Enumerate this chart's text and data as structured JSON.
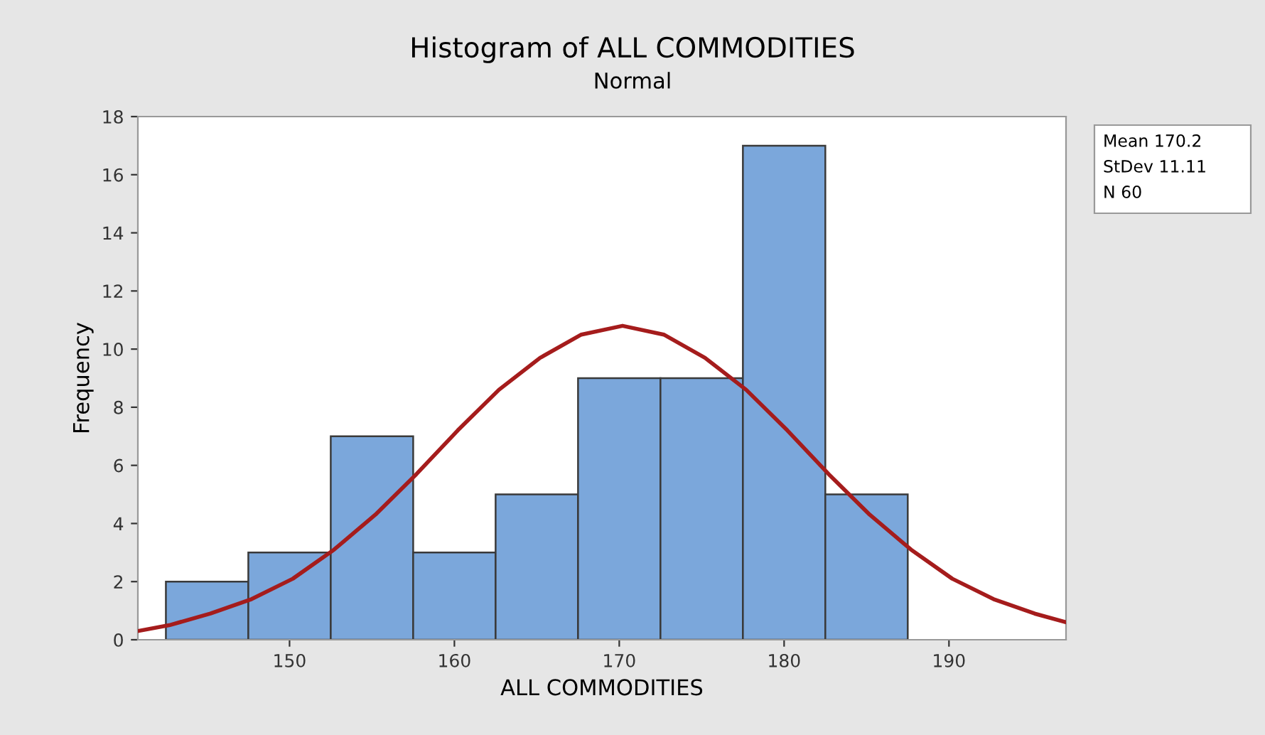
{
  "chart_data": {
    "type": "histogram",
    "title": "Histogram of ALL COMMODITIES",
    "subtitle": "Normal",
    "xlabel": "ALL COMMODITIES",
    "ylabel": "Frequency",
    "bins": [
      142.5,
      147.5,
      152.5,
      157.5,
      162.5,
      167.5,
      172.5,
      177.5,
      182.5,
      187.5
    ],
    "values": [
      2,
      3,
      7,
      3,
      5,
      9,
      9,
      17,
      5
    ],
    "color": "#7ba7db",
    "series": [
      {
        "type": "line",
        "color": "#a51c1c",
        "x": [
          140.8,
          142.7,
          145.2,
          147.7,
          150.2,
          152.7,
          155.2,
          157.7,
          160.2,
          162.7,
          165.2,
          167.7,
          170.2,
          172.7,
          175.2,
          177.7,
          180.2,
          182.7,
          185.2,
          187.7,
          190.2,
          192.7,
          195.2,
          197.1
        ],
        "values": [
          0.3,
          0.5,
          0.9,
          1.4,
          2.1,
          3.1,
          4.3,
          5.7,
          7.2,
          8.6,
          9.7,
          10.5,
          10.8,
          10.5,
          9.7,
          8.6,
          7.2,
          5.7,
          4.3,
          3.1,
          2.1,
          1.4,
          0.9,
          0.6
        ]
      }
    ],
    "xlim": [
      140.8,
      197.1
    ],
    "xticks": [
      150,
      160,
      170,
      180,
      190
    ],
    "ylim": [
      0,
      18
    ],
    "yticks": [
      0,
      2,
      4,
      6,
      8,
      10,
      12,
      14,
      16,
      18
    ],
    "grid": false,
    "annotations": [
      "Mean 170.2",
      "StDev 11.11",
      "N 60"
    ]
  }
}
